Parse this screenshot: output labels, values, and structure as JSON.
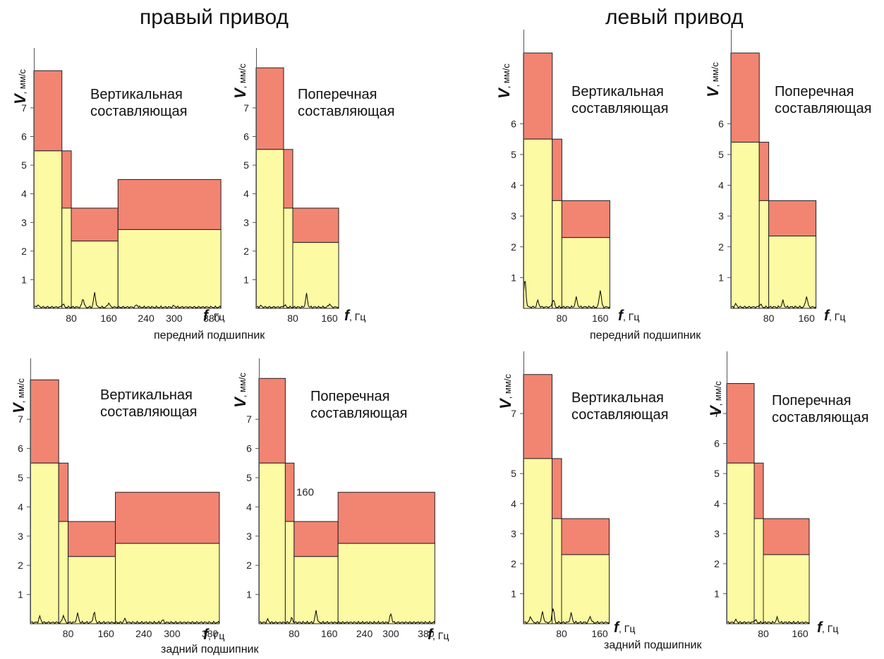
{
  "titles": {
    "right_drive": "правый привод",
    "left_drive": "левый привод"
  },
  "captions": {
    "right_front": "передний подшипник",
    "right_rear": "задний подшипник",
    "left_front": "передний подшипник",
    "left_rear": "задний подшипник"
  },
  "colors": {
    "alarm_zone": "#f28472",
    "normal_zone": "#fdfaa4",
    "spectrum": "#000000"
  },
  "chart_data": [
    {
      "type": "bar",
      "drive": "правый привод",
      "bearing": "передний подшипник",
      "title_lines": [
        "Вертикальная",
        "составляющая"
      ],
      "ylabel_symbol": "V",
      "ylabel_unit": ", мм/с",
      "xlabel_symbol": "f",
      "xlabel_unit": ", Гц",
      "y_ticks": [
        "1",
        "2",
        "3",
        "4",
        "5",
        "6",
        "7"
      ],
      "x_ticks": [
        "80",
        "160",
        "240",
        "300",
        "380"
      ],
      "annotation": "",
      "bands": [
        {
          "x_range": [
            0,
            60
          ],
          "normal": 5.5,
          "alarm": 8.3
        },
        {
          "x_range": [
            60,
            80
          ],
          "normal": 3.5,
          "alarm": 5.5
        },
        {
          "x_range": [
            80,
            180
          ],
          "normal": 2.35,
          "alarm": 3.5
        },
        {
          "x_range": [
            180,
            400
          ],
          "normal": 2.75,
          "alarm": 4.5
        }
      ],
      "spectrum_peaks": [
        [
          8,
          0.08
        ],
        [
          62,
          0.12
        ],
        [
          105,
          0.3
        ],
        [
          130,
          0.5
        ],
        [
          160,
          0.15
        ],
        [
          220,
          0.08
        ],
        [
          300,
          0.05
        ]
      ],
      "xlim": [
        0,
        430
      ],
      "ylim": [
        0,
        8.6
      ]
    },
    {
      "type": "bar",
      "drive": "правый привод",
      "bearing": "передний подшипник",
      "title_lines": [
        "Поперечная",
        "составляющая"
      ],
      "ylabel_symbol": "V",
      "ylabel_unit": ", мм/с",
      "xlabel_symbol": "f",
      "xlabel_unit": ", Гц",
      "y_ticks": [
        "1",
        "2",
        "3",
        "4",
        "5",
        "6",
        "7"
      ],
      "x_ticks": [
        "80",
        "160"
      ],
      "annotation": "",
      "bands": [
        {
          "x_range": [
            0,
            60
          ],
          "normal": 5.55,
          "alarm": 8.4
        },
        {
          "x_range": [
            60,
            80
          ],
          "normal": 3.5,
          "alarm": 5.55
        },
        {
          "x_range": [
            80,
            180
          ],
          "normal": 2.3,
          "alarm": 3.5
        }
      ],
      "spectrum_peaks": [
        [
          10,
          0.05
        ],
        [
          62,
          0.08
        ],
        [
          110,
          0.45
        ],
        [
          160,
          0.12
        ]
      ],
      "xlim": [
        0,
        200
      ],
      "ylim": [
        0,
        8.6
      ]
    },
    {
      "type": "bar",
      "drive": "правый привод",
      "bearing": "задний подшипник",
      "title_lines": [
        "Вертикальная",
        "составляющая"
      ],
      "ylabel_symbol": "V",
      "ylabel_unit": ", мм/с",
      "xlabel_symbol": "f",
      "xlabel_unit": ", Гц",
      "y_ticks": [
        "1",
        "2",
        "3",
        "4",
        "5",
        "6",
        "7"
      ],
      "x_ticks": [
        "80",
        "160",
        "240",
        "300",
        "380"
      ],
      "annotation": "",
      "bands": [
        {
          "x_range": [
            0,
            60
          ],
          "normal": 5.5,
          "alarm": 8.35
        },
        {
          "x_range": [
            60,
            80
          ],
          "normal": 3.5,
          "alarm": 5.5
        },
        {
          "x_range": [
            80,
            180
          ],
          "normal": 2.3,
          "alarm": 3.5
        },
        {
          "x_range": [
            180,
            400
          ],
          "normal": 2.75,
          "alarm": 4.5
        }
      ],
      "spectrum_peaks": [
        [
          20,
          0.2
        ],
        [
          70,
          0.25
        ],
        [
          100,
          0.3
        ],
        [
          135,
          0.35
        ],
        [
          200,
          0.12
        ],
        [
          280,
          0.08
        ]
      ],
      "xlim": [
        0,
        430
      ],
      "ylim": [
        0,
        8.6
      ]
    },
    {
      "type": "bar",
      "drive": "правый привод",
      "bearing": "задний подшипник",
      "title_lines": [
        "Поперечная",
        "составляющая"
      ],
      "ylabel_symbol": "V",
      "ylabel_unit": ", мм/с",
      "xlabel_symbol": "f",
      "xlabel_unit": ", Гц",
      "y_ticks": [
        "1",
        "2",
        "3",
        "4",
        "5",
        "6",
        "7"
      ],
      "x_ticks": [
        "80",
        "160",
        "240",
        "300",
        "380"
      ],
      "annotation": "160",
      "bands": [
        {
          "x_range": [
            0,
            60
          ],
          "normal": 5.5,
          "alarm": 8.4
        },
        {
          "x_range": [
            60,
            80
          ],
          "normal": 3.5,
          "alarm": 5.5
        },
        {
          "x_range": [
            80,
            180
          ],
          "normal": 2.3,
          "alarm": 3.5
        },
        {
          "x_range": [
            180,
            400
          ],
          "normal": 2.75,
          "alarm": 4.5
        }
      ],
      "spectrum_peaks": [
        [
          20,
          0.1
        ],
        [
          75,
          0.15
        ],
        [
          130,
          0.4
        ],
        [
          300,
          0.3
        ]
      ],
      "xlim": [
        0,
        430
      ],
      "ylim": [
        0,
        8.6
      ]
    },
    {
      "type": "bar",
      "drive": "левый привод",
      "bearing": "передний подшипник",
      "title_lines": [
        "Вертикальная",
        "составляющая"
      ],
      "ylabel_symbol": "V",
      "ylabel_unit": ", мм/с",
      "xlabel_symbol": "f",
      "xlabel_unit": ", Гц",
      "y_ticks": [
        "1",
        "2",
        "3",
        "4",
        "5",
        "6"
      ],
      "x_ticks": [
        "80",
        "160"
      ],
      "annotation": "",
      "bands": [
        {
          "x_range": [
            0,
            60
          ],
          "normal": 5.5,
          "alarm": 8.3
        },
        {
          "x_range": [
            60,
            80
          ],
          "normal": 3.5,
          "alarm": 5.5
        },
        {
          "x_range": [
            80,
            180
          ],
          "normal": 2.3,
          "alarm": 3.5
        }
      ],
      "spectrum_peaks": [
        [
          3,
          0.9
        ],
        [
          30,
          0.2
        ],
        [
          62,
          0.25
        ],
        [
          110,
          0.3
        ],
        [
          160,
          0.55
        ]
      ],
      "xlim": [
        0,
        200
      ],
      "ylim": [
        0,
        8.6
      ]
    },
    {
      "type": "bar",
      "drive": "левый привод",
      "bearing": "передний подшипник",
      "title_lines": [
        "Поперечная",
        "составляющая"
      ],
      "ylabel_symbol": "V",
      "ylabel_unit": ", мм/с",
      "xlabel_symbol": "f",
      "xlabel_unit": ", Гц",
      "y_ticks": [
        "1",
        "2",
        "3",
        "4",
        "5",
        "6"
      ],
      "x_ticks": [
        "80",
        "160"
      ],
      "annotation": "",
      "bands": [
        {
          "x_range": [
            0,
            60
          ],
          "normal": 5.4,
          "alarm": 8.3
        },
        {
          "x_range": [
            60,
            80
          ],
          "normal": 3.5,
          "alarm": 5.4
        },
        {
          "x_range": [
            80,
            180
          ],
          "normal": 2.35,
          "alarm": 3.5
        }
      ],
      "spectrum_peaks": [
        [
          10,
          0.1
        ],
        [
          62,
          0.1
        ],
        [
          110,
          0.2
        ],
        [
          160,
          0.35
        ]
      ],
      "xlim": [
        0,
        200
      ],
      "ylim": [
        0,
        8.6
      ]
    },
    {
      "type": "bar",
      "drive": "левый привод",
      "bearing": "задний подшипник",
      "title_lines": [
        "Вертикальная",
        "составляющая"
      ],
      "ylabel_symbol": "V",
      "ylabel_unit": ", мм/с",
      "xlabel_symbol": "f",
      "xlabel_unit": ", Гц",
      "y_ticks": [
        "1",
        "2",
        "3",
        "4",
        "5",
        "7"
      ],
      "x_ticks": [
        "80",
        "160"
      ],
      "annotation": "",
      "bands": [
        {
          "x_range": [
            0,
            60
          ],
          "normal": 5.5,
          "alarm": 8.3
        },
        {
          "x_range": [
            60,
            80
          ],
          "normal": 3.5,
          "alarm": 5.5
        },
        {
          "x_range": [
            80,
            180
          ],
          "normal": 2.3,
          "alarm": 3.5
        }
      ],
      "spectrum_peaks": [
        [
          15,
          0.2
        ],
        [
          40,
          0.35
        ],
        [
          62,
          0.5
        ],
        [
          100,
          0.3
        ],
        [
          140,
          0.2
        ]
      ],
      "xlim": [
        0,
        200
      ],
      "ylim": [
        0,
        8.6
      ]
    },
    {
      "type": "bar",
      "drive": "левый привод",
      "bearing": "задний подшипник",
      "title_lines": [
        "Поперечная",
        "составляющая"
      ],
      "ylabel_symbol": "V",
      "ylabel_unit": ", мм/с",
      "xlabel_symbol": "f",
      "xlabel_unit": ", Гц",
      "y_ticks": [
        "1",
        "2",
        "3",
        "4",
        "5",
        "6",
        "7"
      ],
      "x_ticks": [
        "80",
        "160"
      ],
      "annotation": "",
      "bands": [
        {
          "x_range": [
            0,
            60
          ],
          "normal": 5.35,
          "alarm": 8.0
        },
        {
          "x_range": [
            60,
            80
          ],
          "normal": 3.5,
          "alarm": 5.35
        },
        {
          "x_range": [
            80,
            180
          ],
          "normal": 2.3,
          "alarm": 3.5
        }
      ],
      "spectrum_peaks": [
        [
          20,
          0.08
        ],
        [
          62,
          0.1
        ],
        [
          110,
          0.15
        ]
      ],
      "xlim": [
        0,
        200
      ],
      "ylim": [
        0,
        8.6
      ]
    }
  ]
}
